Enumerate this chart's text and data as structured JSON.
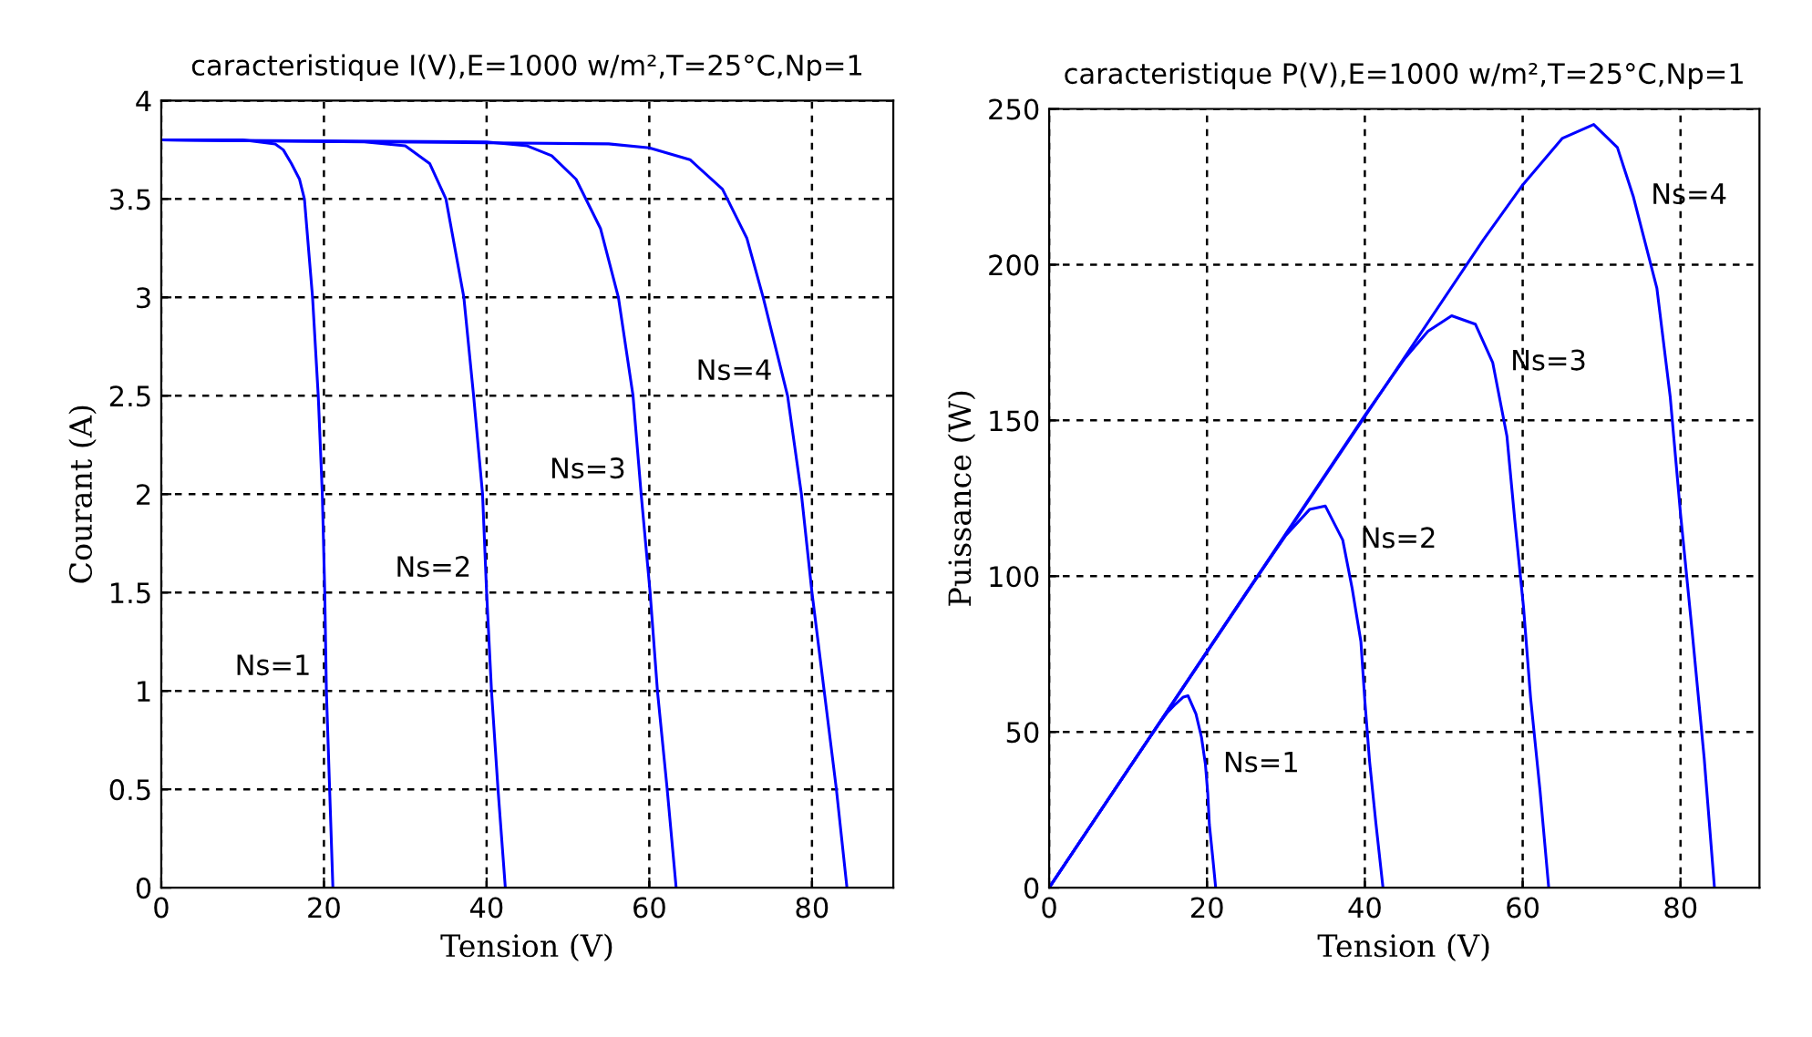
{
  "chart_data": [
    {
      "type": "line",
      "title": "caracteristique I(V),E=1000 w/m²,T=25°C,Np=1",
      "xlabel": "Tension (V)",
      "ylabel": "Courant (A)",
      "xlim": [
        0,
        90
      ],
      "xticks": [
        0,
        20,
        40,
        60,
        80
      ],
      "ylim": [
        0,
        4
      ],
      "yticks": [
        0,
        0.5,
        1,
        1.5,
        2,
        2.5,
        3,
        3.5,
        4
      ],
      "grid": true,
      "legend": false,
      "series": [
        {
          "color": "#0000ff",
          "x": [
            0,
            10,
            14,
            15,
            16,
            17,
            17.6,
            18.6,
            19.3,
            19.8,
            20.1,
            20.3,
            20.7,
            21.1
          ],
          "values": [
            3.8,
            3.8,
            3.78,
            3.75,
            3.68,
            3.6,
            3.5,
            3.0,
            2.5,
            2.0,
            1.5,
            1.0,
            0.5,
            0
          ]
        },
        {
          "color": "#0000ff",
          "x": [
            0,
            25,
            30,
            33,
            35,
            37.2,
            38.4,
            39.5,
            40,
            40.6,
            41.4,
            42.3
          ],
          "values": [
            3.8,
            3.79,
            3.77,
            3.68,
            3.5,
            3.0,
            2.5,
            2.0,
            1.5,
            1.0,
            0.5,
            0
          ]
        },
        {
          "color": "#0000ff",
          "x": [
            0,
            40,
            45,
            48,
            51,
            54,
            56.2,
            58,
            59,
            60.1,
            61,
            62.2,
            63.3
          ],
          "values": [
            3.8,
            3.79,
            3.77,
            3.72,
            3.6,
            3.35,
            3.0,
            2.5,
            2.0,
            1.5,
            1.0,
            0.5,
            0
          ]
        },
        {
          "color": "#0000ff",
          "x": [
            0,
            55,
            60,
            65,
            69,
            72,
            74,
            77,
            78.7,
            80,
            81.5,
            83,
            84.3
          ],
          "values": [
            3.8,
            3.78,
            3.76,
            3.7,
            3.55,
            3.3,
            3.0,
            2.5,
            2.0,
            1.5,
            1.0,
            0.5,
            0
          ]
        }
      ],
      "annotations": [
        {
          "text": "Ns=1",
          "x": 20.3,
          "y": 1.0
        },
        {
          "text": "Ns=2",
          "x": 40,
          "y": 1.5
        },
        {
          "text": "Ns=3",
          "x": 59,
          "y": 2.0
        },
        {
          "text": "Ns=4",
          "x": 77,
          "y": 2.5
        }
      ]
    },
    {
      "type": "line",
      "title": "caracteristique P(V),E=1000 w/m²,T=25°C,Np=1",
      "xlabel": "Tension (V)",
      "ylabel": "Puissance (W)",
      "xlim": [
        0,
        90
      ],
      "xticks": [
        0,
        20,
        40,
        60,
        80
      ],
      "ylim": [
        0,
        250
      ],
      "yticks": [
        0,
        50,
        100,
        150,
        200,
        250
      ],
      "grid": true,
      "legend": false,
      "series": [
        {
          "color": "#0000ff",
          "x": [
            0,
            10,
            14,
            15,
            16,
            17,
            17.6,
            18.6,
            19.3,
            19.8,
            20.1,
            20.3,
            20.7,
            21.1
          ],
          "values": [
            0,
            38,
            52.9,
            56.3,
            58.9,
            61.2,
            61.6,
            55.8,
            48.3,
            39.6,
            30.2,
            20.3,
            10.4,
            0
          ]
        },
        {
          "color": "#0000ff",
          "x": [
            0,
            25,
            30,
            33,
            35,
            37.2,
            38.4,
            39.5,
            40,
            40.6,
            41.4,
            42.3
          ],
          "values": [
            0,
            94.8,
            113.1,
            121.4,
            122.5,
            111.6,
            96,
            79,
            60,
            40.6,
            20.7,
            0
          ]
        },
        {
          "color": "#0000ff",
          "x": [
            0,
            40,
            45,
            48,
            51,
            54,
            56.2,
            58,
            59,
            60.1,
            61,
            62.2,
            63.3
          ],
          "values": [
            0,
            151.6,
            169.7,
            178.6,
            183.6,
            180.9,
            168.6,
            145,
            118,
            90.2,
            61,
            31.1,
            0
          ]
        },
        {
          "color": "#0000ff",
          "x": [
            0,
            55,
            60,
            65,
            69,
            72,
            74,
            77,
            78.7,
            80,
            81.5,
            83,
            84.3
          ],
          "values": [
            0,
            207.9,
            225.6,
            240.5,
            245,
            237.6,
            222,
            192.5,
            157.4,
            120,
            81.5,
            41.5,
            0
          ]
        }
      ],
      "annotations": [
        {
          "text": "Ns=1",
          "x": 19.8,
          "y": 39.6
        },
        {
          "text": "Ns=2",
          "x": 37.2,
          "y": 111.6
        },
        {
          "text": "Ns=3",
          "x": 56.2,
          "y": 168.6
        },
        {
          "text": "Ns=4",
          "x": 74,
          "y": 222
        }
      ]
    }
  ]
}
